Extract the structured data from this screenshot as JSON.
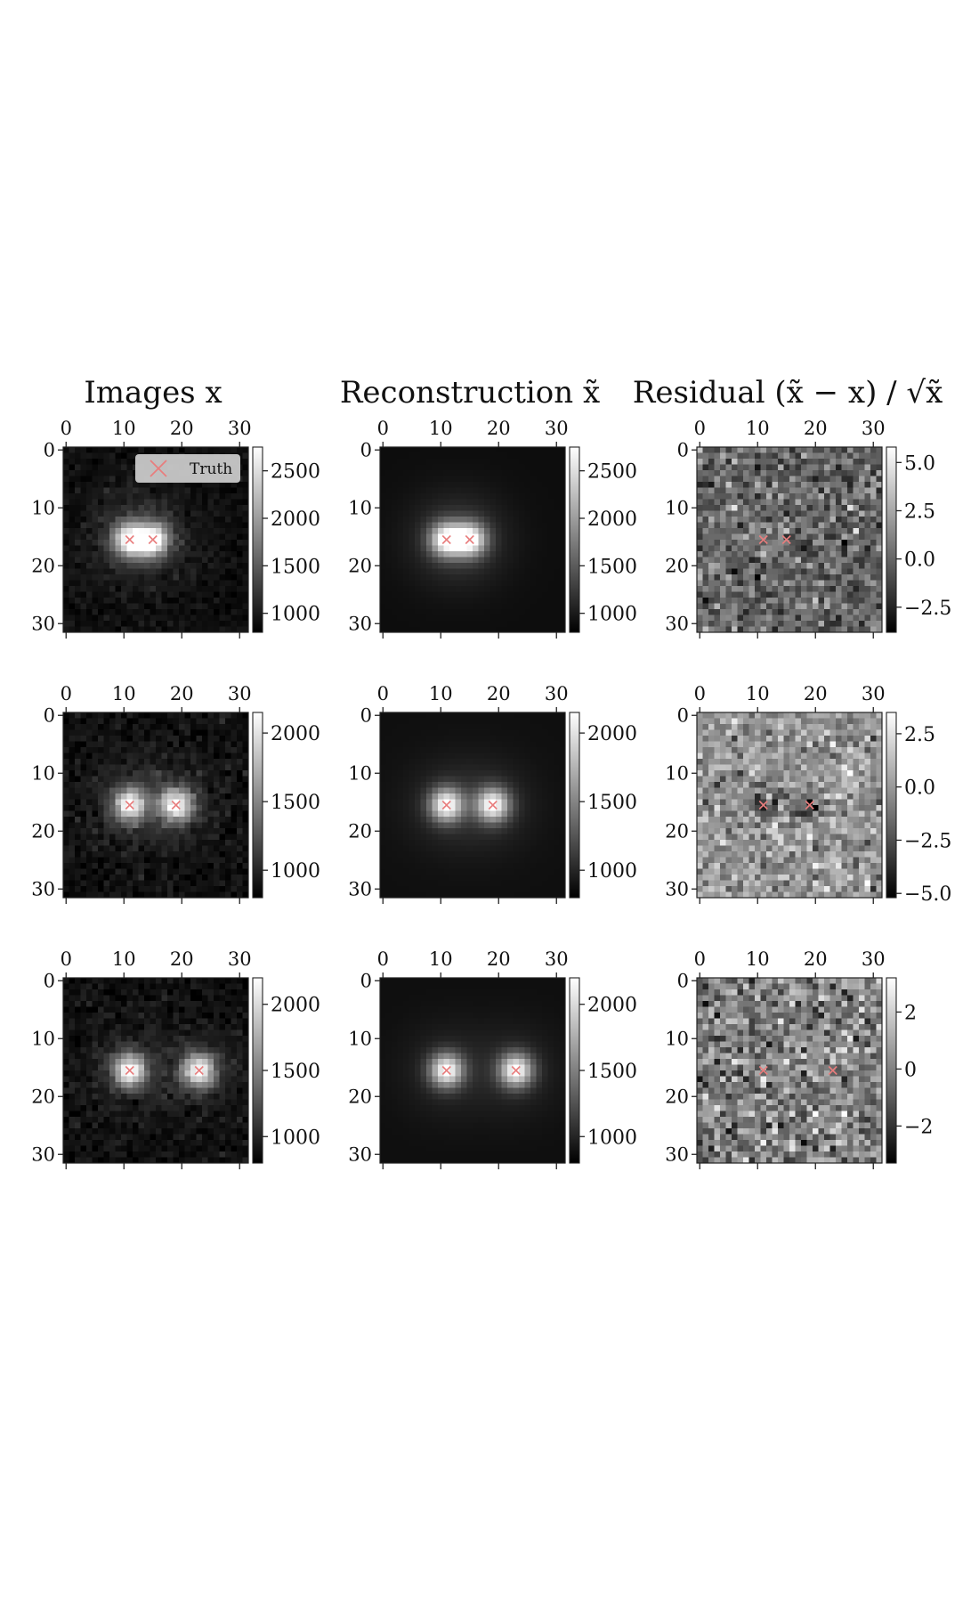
{
  "column_titles": [
    "Images x",
    "Reconstruction x̃",
    "Residual (x̃ − x) / √x̃"
  ],
  "legend": {
    "label": "Truth",
    "marker_color": "#e87d7d"
  },
  "axis_ticks": [
    "0",
    "10",
    "20",
    "30"
  ],
  "chart_data": [
    {
      "type": "heatmap",
      "row": 0,
      "col": 0,
      "kind": "image",
      "grid": [
        32,
        32
      ],
      "colormap": "gray",
      "sources": [
        [
          11,
          15.5
        ],
        [
          15,
          15.5
        ]
      ],
      "vmin": 800,
      "vmax": 2750,
      "background": 900,
      "colorbar_ticks": [
        "2500",
        "2000",
        "1500",
        "1000"
      ],
      "colorbar_values": [
        2500,
        2000,
        1500,
        1000
      ],
      "noise": 60,
      "seed": 11,
      "legend": true
    },
    {
      "type": "heatmap",
      "row": 0,
      "col": 1,
      "kind": "reconstruction",
      "grid": [
        32,
        32
      ],
      "colormap": "gray",
      "sources": [
        [
          11,
          15.5
        ],
        [
          15,
          15.5
        ]
      ],
      "vmin": 800,
      "vmax": 2750,
      "background": 900,
      "colorbar_ticks": [
        "2500",
        "2000",
        "1500",
        "1000"
      ],
      "colorbar_values": [
        2500,
        2000,
        1500,
        1000
      ],
      "noise": 0,
      "seed": 12
    },
    {
      "type": "heatmap",
      "row": 0,
      "col": 2,
      "kind": "residual",
      "grid": [
        32,
        32
      ],
      "colormap": "gray",
      "sources": [
        [
          11,
          15.5
        ],
        [
          15,
          15.5
        ]
      ],
      "vmin": -3.8,
      "vmax": 5.8,
      "colorbar_ticks": [
        "5.0",
        "2.5",
        "0.0",
        "−2.5"
      ],
      "colorbar_values": [
        5.0,
        2.5,
        0.0,
        -2.5
      ],
      "noise": 1.3,
      "seed": 13,
      "blob": 1.5
    },
    {
      "type": "heatmap",
      "row": 1,
      "col": 0,
      "kind": "image",
      "grid": [
        32,
        32
      ],
      "colormap": "gray",
      "sources": [
        [
          11,
          15.5
        ],
        [
          19,
          15.5
        ]
      ],
      "vmin": 800,
      "vmax": 2150,
      "background": 880,
      "colorbar_ticks": [
        "2000",
        "1500",
        "1000"
      ],
      "colorbar_values": [
        2000,
        1500,
        1000
      ],
      "noise": 55,
      "seed": 21
    },
    {
      "type": "heatmap",
      "row": 1,
      "col": 1,
      "kind": "reconstruction",
      "grid": [
        32,
        32
      ],
      "colormap": "gray",
      "sources": [
        [
          11,
          15.5
        ],
        [
          19,
          15.5
        ]
      ],
      "vmin": 800,
      "vmax": 2150,
      "background": 880,
      "colorbar_ticks": [
        "2000",
        "1500",
        "1000"
      ],
      "colorbar_values": [
        2000,
        1500,
        1000
      ],
      "noise": 0,
      "seed": 22
    },
    {
      "type": "heatmap",
      "row": 1,
      "col": 2,
      "kind": "residual",
      "grid": [
        32,
        32
      ],
      "colormap": "gray",
      "sources": [
        [
          11,
          15.5
        ],
        [
          19,
          15.5
        ]
      ],
      "vmin": -5.2,
      "vmax": 3.5,
      "colorbar_ticks": [
        "2.5",
        "0.0",
        "−2.5",
        "−5.0"
      ],
      "colorbar_values": [
        2.5,
        0.0,
        -2.5,
        -5.0
      ],
      "noise": 1.2,
      "seed": 23,
      "blob": -3.0
    },
    {
      "type": "heatmap",
      "row": 2,
      "col": 0,
      "kind": "image",
      "grid": [
        32,
        32
      ],
      "colormap": "gray",
      "sources": [
        [
          11,
          15.5
        ],
        [
          23,
          15.5
        ]
      ],
      "vmin": 800,
      "vmax": 2200,
      "background": 880,
      "colorbar_ticks": [
        "2000",
        "1500",
        "1000"
      ],
      "colorbar_values": [
        2000,
        1500,
        1000
      ],
      "noise": 55,
      "seed": 31
    },
    {
      "type": "heatmap",
      "row": 2,
      "col": 1,
      "kind": "reconstruction",
      "grid": [
        32,
        32
      ],
      "colormap": "gray",
      "sources": [
        [
          11,
          15.5
        ],
        [
          23,
          15.5
        ]
      ],
      "vmin": 800,
      "vmax": 2200,
      "background": 880,
      "colorbar_ticks": [
        "2000",
        "1500",
        "1000"
      ],
      "colorbar_values": [
        2000,
        1500,
        1000
      ],
      "noise": 0,
      "seed": 32
    },
    {
      "type": "heatmap",
      "row": 2,
      "col": 2,
      "kind": "residual",
      "grid": [
        32,
        32
      ],
      "colormap": "gray",
      "sources": [
        [
          11,
          15.5
        ],
        [
          23,
          15.5
        ]
      ],
      "vmin": -3.3,
      "vmax": 3.2,
      "colorbar_ticks": [
        "2",
        "0",
        "−2"
      ],
      "colorbar_values": [
        2,
        0,
        -2
      ],
      "noise": 1.1,
      "seed": 33,
      "blob": 0
    }
  ]
}
